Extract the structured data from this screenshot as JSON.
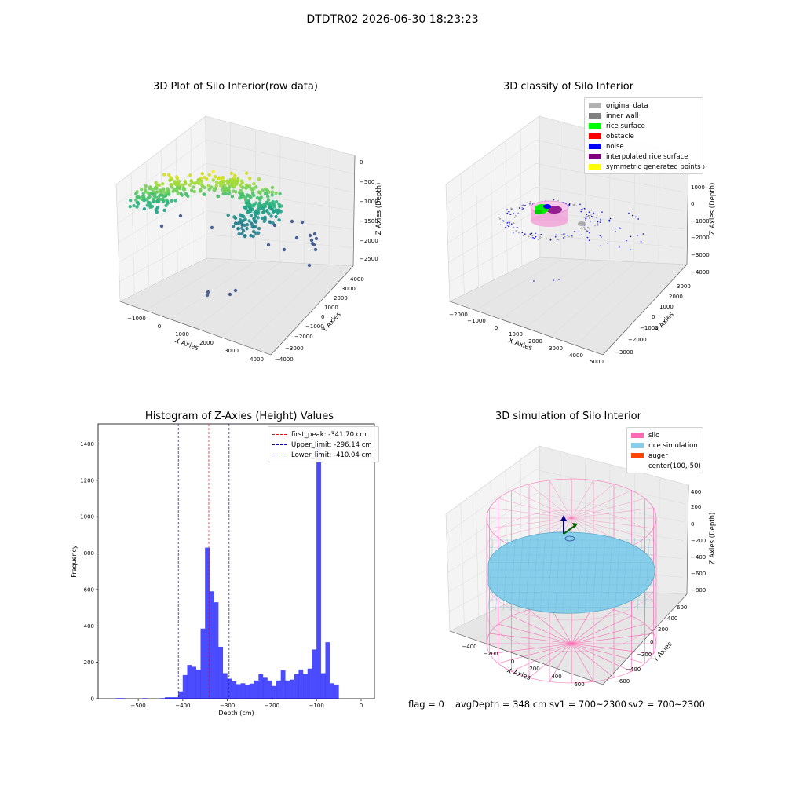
{
  "figure": {
    "suptitle": "DTDTR02 2026-06-30 18:23:23",
    "footer": {
      "flag": "flag = 0",
      "avg": "avgDepth = 348 cm",
      "sv1": "sv1 = 700~2300",
      "sv2": "sv2 = 700~2300"
    }
  },
  "chart_data": [
    {
      "type": "scatter",
      "projection": "3d",
      "title": "3D Plot of Silo Interior(row data)",
      "xlabel": "X Axies",
      "ylabel": "Y Axies",
      "zlabel": "Z Axies (Depth)",
      "x_ticks": [
        "−1000",
        "0",
        "1000",
        "2000",
        "3000",
        "4000"
      ],
      "y_ticks": [
        "−4000",
        "−3000",
        "−2000",
        "−1000",
        "0",
        "1000",
        "2000",
        "3000",
        "4000"
      ],
      "z_ticks": [
        "0",
        "−500",
        "−1000",
        "−1500",
        "−2000",
        "−2500"
      ],
      "colormap": "viridis",
      "grid": true
    },
    {
      "type": "scatter",
      "projection": "3d",
      "title": "3D classify of Silo Interior",
      "xlabel": "X Axies",
      "ylabel": "Y Axies",
      "zlabel": "Z Axies (Depth)",
      "x_ticks": [
        "−2000",
        "−1000",
        "0",
        "1000",
        "2000",
        "3000",
        "4000",
        "5000"
      ],
      "y_ticks": [
        "−3000",
        "−2000",
        "−1000",
        "0",
        "1000",
        "2000",
        "3000"
      ],
      "z_ticks": [
        "2000",
        "1000",
        "0",
        "−1000",
        "−2000",
        "−3000",
        "−4000"
      ],
      "legend_position": "top-right",
      "legend": [
        {
          "name": "original data",
          "color": "#b0b0b0"
        },
        {
          "name": "inner wall",
          "color": "#808080"
        },
        {
          "name": "rice surface",
          "color": "#00ff00"
        },
        {
          "name": "obstacle",
          "color": "#ff0000"
        },
        {
          "name": "noise",
          "color": "#0000ff"
        },
        {
          "name": "interpolated rice surface",
          "color": "#800080"
        },
        {
          "name": "symmetric generated points",
          "color": "#ffff00"
        }
      ],
      "grid": true
    },
    {
      "type": "bar",
      "title": "Histogram of Z-Axies (Height) Values",
      "xlabel": "Depth (cm)",
      "ylabel": "Frequency",
      "xlim": [
        -590,
        30
      ],
      "ylim": [
        0,
        1510
      ],
      "x_ticks": [
        -500,
        -400,
        -300,
        -200,
        -100,
        0
      ],
      "y_ticks": [
        0,
        200,
        400,
        600,
        800,
        1000,
        1200,
        1400
      ],
      "bar_color": "#0000ff",
      "bin_width": 10.3,
      "bins": [
        [
          -545,
          3
        ],
        [
          -535,
          3
        ],
        [
          -525,
          0
        ],
        [
          -515,
          0
        ],
        [
          -505,
          0
        ],
        [
          -495,
          0
        ],
        [
          -485,
          3
        ],
        [
          -475,
          0
        ],
        [
          -465,
          0
        ],
        [
          -455,
          0
        ],
        [
          -445,
          3
        ],
        [
          -435,
          8
        ],
        [
          -425,
          8
        ],
        [
          -415,
          8
        ],
        [
          -405,
          40
        ],
        [
          -395,
          130
        ],
        [
          -385,
          185
        ],
        [
          -375,
          175
        ],
        [
          -365,
          160
        ],
        [
          -355,
          385
        ],
        [
          -345,
          830
        ],
        [
          -335,
          590
        ],
        [
          -325,
          530
        ],
        [
          -315,
          285
        ],
        [
          -305,
          140
        ],
        [
          -295,
          110
        ],
        [
          -285,
          95
        ],
        [
          -275,
          80
        ],
        [
          -265,
          85
        ],
        [
          -255,
          78
        ],
        [
          -245,
          83
        ],
        [
          -235,
          100
        ],
        [
          -225,
          135
        ],
        [
          -215,
          115
        ],
        [
          -205,
          100
        ],
        [
          -195,
          70
        ],
        [
          -185,
          100
        ],
        [
          -175,
          155
        ],
        [
          -165,
          100
        ],
        [
          -155,
          105
        ],
        [
          -145,
          135
        ],
        [
          -135,
          160
        ],
        [
          -125,
          135
        ],
        [
          -115,
          165
        ],
        [
          -105,
          270
        ],
        [
          -95,
          1380
        ],
        [
          -85,
          140
        ],
        [
          -75,
          310
        ],
        [
          -65,
          85
        ],
        [
          -55,
          78
        ]
      ],
      "lines": [
        {
          "name": "first_peak: -341.70 cm",
          "x": -341.7,
          "color": "#ff0000"
        },
        {
          "name": "Upper_limit: -296.14 cm",
          "x": -296.14,
          "color": "#0000cc"
        },
        {
          "name": "Lower_limit: -410.04 cm",
          "x": -410.04,
          "color": "#0000cc"
        }
      ],
      "legend_position": "top-right"
    },
    {
      "type": "surface",
      "projection": "3d",
      "title": "3D simulation of Silo Interior",
      "xlabel": "X Axies",
      "ylabel": "Y Axies",
      "zlabel": "Z Axies (Depth)",
      "x_ticks": [
        "−400",
        "−200",
        "0",
        "200",
        "400",
        "600"
      ],
      "y_ticks": [
        "−600",
        "−400",
        "−200",
        "0",
        "200",
        "400",
        "600"
      ],
      "z_ticks": [
        "400",
        "200",
        "0",
        "−200",
        "−400",
        "−600",
        "−800"
      ],
      "legend_position": "top-right",
      "legend": [
        {
          "name": "silo",
          "color": "#ff69b4"
        },
        {
          "name": "rice simulation",
          "color": "#87ceeb"
        },
        {
          "name": "auger",
          "color": "#ff4500"
        },
        {
          "name": "center(100,-50)",
          "color": ""
        }
      ],
      "grid": true
    }
  ]
}
